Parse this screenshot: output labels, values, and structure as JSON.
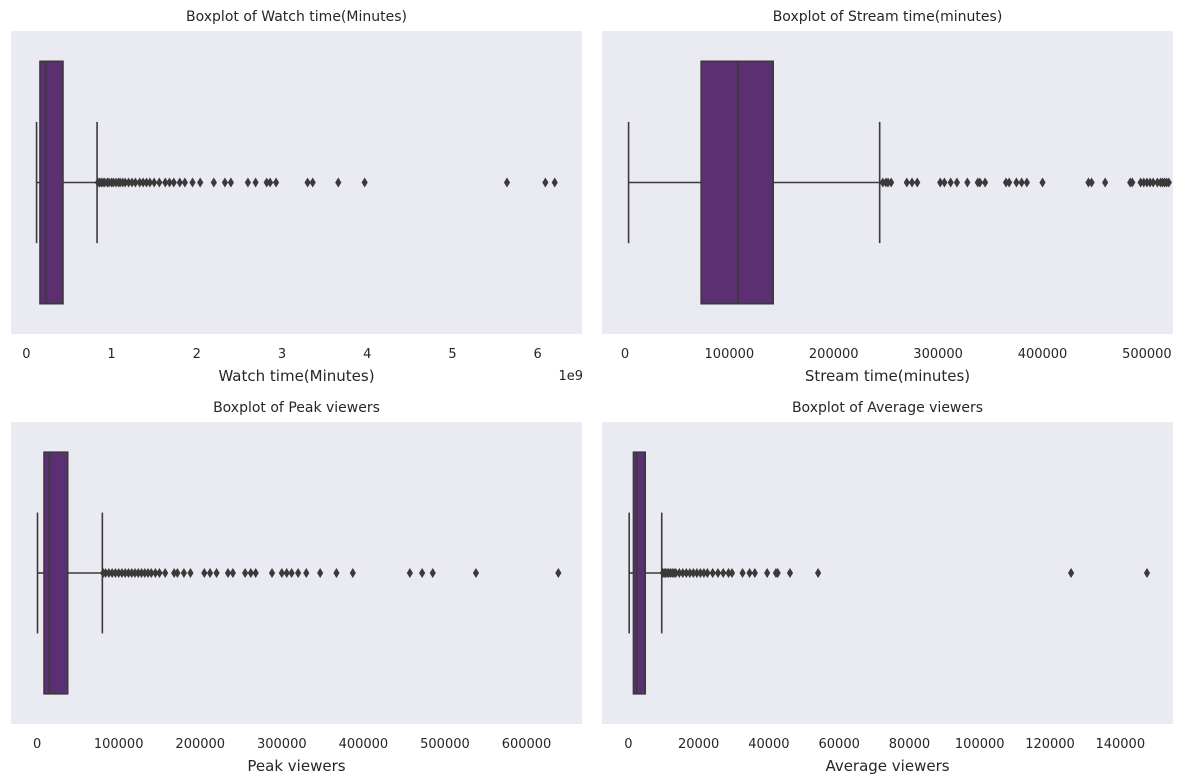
{
  "chart_data": [
    {
      "type": "boxplot",
      "title": "Boxplot of Watch time(Minutes)",
      "xlabel": "Watch time(Minutes)",
      "offset_text": "1e9",
      "xlim": [
        -0.18,
        6.52
      ],
      "ticks": [
        0,
        1,
        2,
        3,
        4,
        5,
        6
      ],
      "tick_labels": [
        "0",
        "1",
        "2",
        "3",
        "4",
        "5",
        "6"
      ],
      "box": {
        "whisker_low": 0.12,
        "q1": 0.16,
        "median": 0.23,
        "q3": 0.43,
        "whisker_high": 0.83
      },
      "outliers": [
        0.84,
        0.86,
        0.88,
        0.9,
        0.92,
        0.95,
        0.97,
        1.0,
        1.02,
        1.05,
        1.08,
        1.1,
        1.13,
        1.16,
        1.2,
        1.24,
        1.28,
        1.33,
        1.37,
        1.41,
        1.45,
        1.5,
        1.56,
        1.63,
        1.68,
        1.73,
        1.8,
        1.86,
        1.95,
        2.04,
        2.2,
        2.33,
        2.4,
        2.6,
        2.69,
        2.82,
        2.86,
        2.93,
        3.3,
        3.36,
        3.66,
        3.97,
        5.64,
        6.09,
        6.2
      ]
    },
    {
      "type": "boxplot",
      "title": "Boxplot of Stream time(minutes)",
      "xlabel": "Stream time(minutes)",
      "offset_text": "",
      "xlim": [
        -22000,
        525000
      ],
      "ticks": [
        0,
        100000,
        200000,
        300000,
        400000,
        500000
      ],
      "tick_labels": [
        "0",
        "100000",
        "200000",
        "300000",
        "400000",
        "500000"
      ],
      "box": {
        "whisker_low": 3465,
        "q1": 73000,
        "median": 108000,
        "q3": 142000,
        "whisker_high": 244000
      },
      "outliers": [
        247000,
        250000,
        252000,
        255000,
        270000,
        275000,
        280000,
        302000,
        306000,
        312000,
        318000,
        328000,
        338000,
        340000,
        345000,
        365000,
        368000,
        375000,
        380000,
        385000,
        400000,
        444000,
        447000,
        460000,
        484000,
        486000,
        494000,
        497000,
        500000,
        503000,
        506000,
        510000,
        513000,
        515000,
        517000,
        519000,
        521000
      ]
    },
    {
      "type": "boxplot",
      "title": "Boxplot of Peak viewers",
      "xlabel": "Peak viewers",
      "offset_text": "",
      "xlim": [
        -32000,
        668000
      ],
      "ticks": [
        0,
        100000,
        200000,
        300000,
        400000,
        500000,
        600000
      ],
      "tick_labels": [
        "0",
        "100000",
        "200000",
        "300000",
        "400000",
        "500000",
        "600000"
      ],
      "box": {
        "whisker_low": 496,
        "q1": 8500,
        "median": 15000,
        "q3": 37500,
        "whisker_high": 80000
      },
      "outliers": [
        81000,
        84000,
        88000,
        92000,
        96000,
        100000,
        104000,
        108000,
        112000,
        116000,
        120000,
        124000,
        128000,
        132000,
        136000,
        140000,
        145000,
        150000,
        157000,
        168000,
        172000,
        180000,
        188000,
        205000,
        212000,
        220000,
        234000,
        240000,
        255000,
        262000,
        268000,
        288000,
        300000,
        306000,
        312000,
        320000,
        330000,
        347000,
        367000,
        387000,
        457000,
        472000,
        485000,
        538000,
        639000
      ]
    },
    {
      "type": "boxplot",
      "title": "Boxplot of Average viewers",
      "xlabel": "Average viewers",
      "offset_text": "",
      "xlim": [
        -7500,
        155000
      ],
      "ticks": [
        0,
        20000,
        40000,
        60000,
        80000,
        100000,
        120000,
        140000
      ],
      "tick_labels": [
        "0",
        "20000",
        "40000",
        "60000",
        "80000",
        "100000",
        "120000",
        "140000"
      ],
      "box": {
        "whisker_low": 235,
        "q1": 1450,
        "median": 2400,
        "q3": 4800,
        "whisker_high": 9500
      },
      "outliers": [
        9800,
        10200,
        10600,
        11000,
        11500,
        12000,
        12500,
        13000,
        13500,
        14500,
        15500,
        16500,
        17500,
        18500,
        19500,
        20500,
        21500,
        22500,
        24000,
        25500,
        27000,
        28500,
        29500,
        32500,
        34500,
        36000,
        39500,
        42000,
        42500,
        46000,
        54000,
        126000,
        147600
      ]
    }
  ],
  "colors": {
    "plot_background": "#EAEAF2",
    "box_fill": "#5B2F72",
    "line": "#3A3A3A",
    "text": "#262626"
  }
}
